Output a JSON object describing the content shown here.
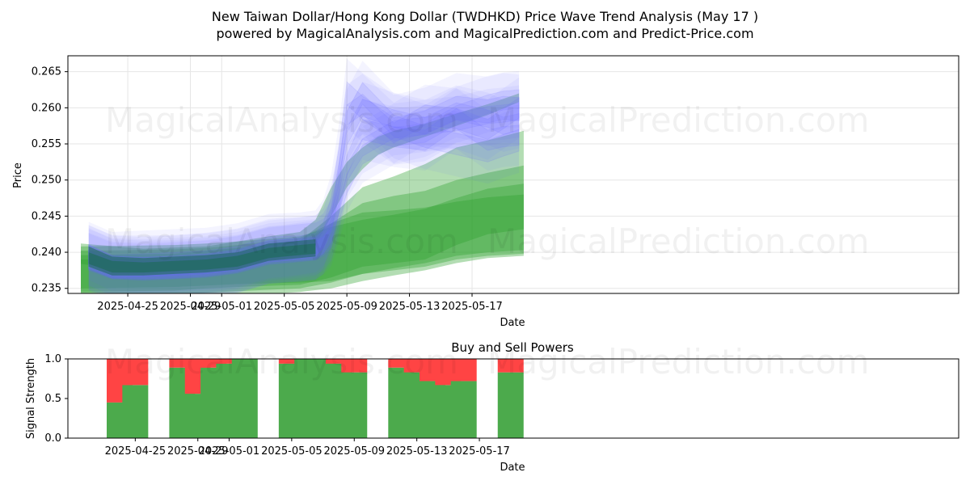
{
  "title_line1": "New Taiwan Dollar/Hong Kong Dollar (TWDHKD) Price Wave Trend Analysis (May 17 )",
  "title_line2": "powered by MagicalAnalysis.com and MagicalPrediction.com and Predict-Price.com",
  "watermarks": [
    "MagicalAnalysis.com",
    "MagicalPrediction.com"
  ],
  "chart_data": [
    {
      "type": "area",
      "name": "price-wave-chart",
      "xlabel": "Date",
      "ylabel": "Price",
      "x_start": "2025-04-22",
      "x_ticks": [
        "2025-04-25",
        "2025-04-29",
        "2025-05-01",
        "2025-05-05",
        "2025-05-09",
        "2025-05-13",
        "2025-05-17"
      ],
      "ylim": [
        0.2343,
        0.2672
      ],
      "y_ticks": [
        0.235,
        0.24,
        0.245,
        0.25,
        0.255,
        0.26,
        0.265
      ],
      "grid": true,
      "colors": {
        "prediction_green": "#2ca02c",
        "wave_blue": "#6a6aff",
        "history_dark": "#1a6a50"
      },
      "green_bands": [
        {
          "day": [
            0,
            6,
            8,
            10,
            14,
            16,
            18,
            20,
            22,
            24,
            26,
            28.3
          ],
          "upper": [
            0.2408,
            0.241,
            0.2412,
            0.2415,
            0.2422,
            0.2435,
            0.2445,
            0.2452,
            0.246,
            0.2475,
            0.2488,
            0.2495
          ],
          "lower": [
            0.235,
            0.2352,
            0.2354,
            0.2356,
            0.2358,
            0.236,
            0.237,
            0.2378,
            0.2385,
            0.2395,
            0.24,
            0.2403
          ]
        },
        {
          "day": [
            0,
            6,
            8,
            10,
            14,
            16,
            18,
            20,
            22,
            24,
            26,
            28.3
          ],
          "upper": [
            0.2402,
            0.2404,
            0.2406,
            0.241,
            0.242,
            0.244,
            0.2455,
            0.2458,
            0.2462,
            0.247,
            0.2476,
            0.248
          ],
          "lower": [
            0.234,
            0.2342,
            0.2344,
            0.2346,
            0.235,
            0.2358,
            0.237,
            0.2375,
            0.238,
            0.239,
            0.2395,
            0.2398
          ]
        },
        {
          "day": [
            0,
            6,
            8,
            10,
            14,
            16,
            18,
            20,
            22,
            24,
            26,
            28.3
          ],
          "upper": [
            0.2396,
            0.2398,
            0.2402,
            0.2406,
            0.2416,
            0.245,
            0.249,
            0.2505,
            0.2522,
            0.2545,
            0.2555,
            0.2568
          ],
          "lower": [
            0.2345,
            0.2347,
            0.235,
            0.2352,
            0.2355,
            0.2365,
            0.238,
            0.2385,
            0.239,
            0.241,
            0.2425,
            0.2432
          ]
        },
        {
          "day": [
            0,
            6,
            8,
            10,
            14,
            16,
            18,
            20,
            22,
            24,
            26,
            28.3
          ],
          "upper": [
            0.239,
            0.2392,
            0.2396,
            0.24,
            0.241,
            0.244,
            0.2468,
            0.2478,
            0.2485,
            0.25,
            0.251,
            0.252
          ],
          "lower": [
            0.2334,
            0.2336,
            0.2338,
            0.234,
            0.2345,
            0.235,
            0.236,
            0.2368,
            0.2375,
            0.2385,
            0.2392,
            0.2395
          ]
        },
        {
          "day": [
            0,
            4,
            8,
            10,
            12,
            14,
            15,
            16,
            17,
            18,
            19,
            20,
            22,
            24,
            26,
            28
          ],
          "upper": [
            0.2412,
            0.2405,
            0.2408,
            0.2415,
            0.2422,
            0.2428,
            0.2445,
            0.249,
            0.2525,
            0.2545,
            0.256,
            0.2568,
            0.2578,
            0.2592,
            0.2605,
            0.262
          ],
          "lower": [
            0.2384,
            0.2372,
            0.2375,
            0.238,
            0.239,
            0.2398,
            0.241,
            0.245,
            0.249,
            0.2515,
            0.2535,
            0.2545,
            0.256,
            0.2575,
            0.259,
            0.2608
          ]
        }
      ],
      "blue_waves": [
        {
          "day": [
            0.5,
            2,
            4,
            6,
            8,
            10,
            12,
            13,
            14,
            15,
            15.5,
            16,
            16.5,
            17,
            18,
            20,
            22,
            24,
            26,
            27,
            28
          ],
          "center": [
            0.2398,
            0.2382,
            0.238,
            0.2381,
            0.2384,
            0.2388,
            0.24,
            0.2402,
            0.2405,
            0.2408,
            0.2418,
            0.244,
            0.249,
            0.256,
            0.26,
            0.2585,
            0.2575,
            0.2595,
            0.2585,
            0.2575,
            0.258
          ],
          "half": 0.0012
        },
        {
          "day": [
            0.5,
            2,
            4,
            6,
            8,
            10,
            12,
            13,
            14,
            15,
            15.5,
            16,
            16.5,
            17,
            18,
            20,
            22,
            24,
            26,
            27,
            28
          ],
          "center": [
            0.239,
            0.2378,
            0.2376,
            0.2378,
            0.238,
            0.2386,
            0.2398,
            0.24,
            0.2402,
            0.2404,
            0.2412,
            0.243,
            0.247,
            0.252,
            0.257,
            0.256,
            0.2555,
            0.2585,
            0.257,
            0.2585,
            0.26
          ],
          "half": 0.0014
        },
        {
          "day": [
            0.5,
            2,
            4,
            6,
            8,
            10,
            12,
            13,
            14,
            15,
            15.5,
            16,
            16.5,
            17,
            18,
            20,
            22,
            24,
            26,
            27,
            28
          ],
          "center": [
            0.2394,
            0.238,
            0.2382,
            0.2384,
            0.2386,
            0.2392,
            0.2405,
            0.2406,
            0.2407,
            0.241,
            0.2425,
            0.246,
            0.253,
            0.262,
            0.26,
            0.257,
            0.258,
            0.26,
            0.2595,
            0.26,
            0.2598
          ],
          "half": 0.0016
        },
        {
          "day": [
            0.5,
            2,
            4,
            6,
            8,
            10,
            12,
            13,
            14,
            15,
            15.5,
            16,
            16.5,
            17,
            18,
            20,
            22,
            24,
            26,
            27,
            28
          ],
          "center": [
            0.2388,
            0.2376,
            0.2374,
            0.2376,
            0.2378,
            0.2384,
            0.2396,
            0.2398,
            0.24,
            0.2402,
            0.2408,
            0.242,
            0.2455,
            0.2495,
            0.2535,
            0.256,
            0.2565,
            0.259,
            0.2605,
            0.261,
            0.2612
          ],
          "half": 0.0013
        },
        {
          "day": [
            0.5,
            2,
            4,
            6,
            8,
            10,
            12,
            13,
            14,
            15,
            15.5,
            16,
            16.5,
            17,
            18,
            20,
            22,
            24,
            26,
            27,
            28
          ],
          "center": [
            0.2392,
            0.2379,
            0.2378,
            0.2379,
            0.2382,
            0.2388,
            0.2401,
            0.2403,
            0.2404,
            0.2406,
            0.2415,
            0.2445,
            0.25,
            0.258,
            0.262,
            0.2575,
            0.256,
            0.255,
            0.254,
            0.2548,
            0.2555
          ],
          "half": 0.0015
        },
        {
          "day": [
            0.5,
            2,
            4,
            6,
            8,
            10,
            12,
            13,
            14,
            15,
            15.5,
            16,
            16.5,
            17,
            18,
            20,
            22,
            24,
            26,
            27,
            28
          ],
          "center": [
            0.2396,
            0.2381,
            0.2379,
            0.2381,
            0.2384,
            0.239,
            0.2402,
            0.2404,
            0.2406,
            0.2409,
            0.242,
            0.245,
            0.251,
            0.259,
            0.2605,
            0.2565,
            0.259,
            0.2585,
            0.2555,
            0.256,
            0.2562
          ],
          "half": 0.0014
        },
        {
          "day": [
            0.5,
            2,
            4,
            6,
            8,
            10,
            12,
            13,
            14,
            15,
            15.5,
            16,
            16.5,
            17,
            18,
            20,
            22,
            24,
            26,
            27,
            28
          ],
          "center": [
            0.239,
            0.2377,
            0.2375,
            0.2377,
            0.238,
            0.2386,
            0.2398,
            0.24,
            0.2403,
            0.2405,
            0.241,
            0.2425,
            0.2465,
            0.251,
            0.2545,
            0.257,
            0.2575,
            0.258,
            0.259,
            0.2592,
            0.2595
          ],
          "half": 0.0012
        }
      ],
      "history_bands": [
        {
          "day": [
            0.5,
            2,
            4,
            6,
            8,
            10,
            12,
            13,
            14,
            15
          ],
          "upper": [
            0.2408,
            0.2394,
            0.2392,
            0.2394,
            0.2396,
            0.24,
            0.2412,
            0.2414,
            0.2416,
            0.2418
          ],
          "lower": [
            0.238,
            0.2368,
            0.2368,
            0.237,
            0.2372,
            0.2376,
            0.2388,
            0.239,
            0.2392,
            0.2394
          ]
        },
        {
          "day": [
            0.5,
            2,
            4,
            6,
            8,
            10,
            12,
            13,
            14,
            15
          ],
          "upper": [
            0.24,
            0.2388,
            0.2386,
            0.2388,
            0.239,
            0.2395,
            0.2406,
            0.2408,
            0.241,
            0.2412
          ],
          "lower": [
            0.2384,
            0.2372,
            0.2372,
            0.2374,
            0.2376,
            0.238,
            0.2392,
            0.2394,
            0.2396,
            0.2398
          ]
        }
      ]
    },
    {
      "type": "bar",
      "name": "buy-sell-power-chart",
      "title": "Buy and Sell Powers",
      "xlabel": "Date",
      "ylabel": "Signal Strength",
      "ylim": [
        0,
        1.0
      ],
      "y_ticks": [
        0.0,
        0.5,
        1.0
      ],
      "x_ticks": [
        "2025-04-25",
        "2025-04-29",
        "2025-05-01",
        "2025-05-05",
        "2025-05-09",
        "2025-05-13",
        "2025-05-17"
      ],
      "colors": {
        "buy": "#4caa4c",
        "sell": "#ff4444"
      },
      "bars": [
        {
          "date": "2025-04-24",
          "buy": 0.45,
          "sell": 0.55
        },
        {
          "date": "2025-04-25",
          "buy": 0.67,
          "sell": 0.33
        },
        {
          "date": "2025-04-28",
          "buy": 0.89,
          "sell": 0.11
        },
        {
          "date": "2025-04-29",
          "buy": 0.56,
          "sell": 0.44
        },
        {
          "date": "2025-04-30",
          "buy": 0.89,
          "sell": 0.11
        },
        {
          "date": "2025-05-01",
          "buy": 0.94,
          "sell": 0.06
        },
        {
          "date": "2025-05-02",
          "buy": 1.0,
          "sell": 0.0
        },
        {
          "date": "2025-05-05",
          "buy": 0.94,
          "sell": 0.06
        },
        {
          "date": "2025-05-06",
          "buy": 1.0,
          "sell": 0.0
        },
        {
          "date": "2025-05-07",
          "buy": 1.0,
          "sell": 0.0
        },
        {
          "date": "2025-05-08",
          "buy": 0.94,
          "sell": 0.06
        },
        {
          "date": "2025-05-09",
          "buy": 0.83,
          "sell": 0.17
        },
        {
          "date": "2025-05-12",
          "buy": 0.89,
          "sell": 0.11
        },
        {
          "date": "2025-05-13",
          "buy": 0.83,
          "sell": 0.17
        },
        {
          "date": "2025-05-14",
          "buy": 0.72,
          "sell": 0.28
        },
        {
          "date": "2025-05-15",
          "buy": 0.67,
          "sell": 0.33
        },
        {
          "date": "2025-05-16",
          "buy": 0.72,
          "sell": 0.28
        },
        {
          "date": "2025-05-19",
          "buy": 0.83,
          "sell": 0.17
        }
      ]
    }
  ]
}
